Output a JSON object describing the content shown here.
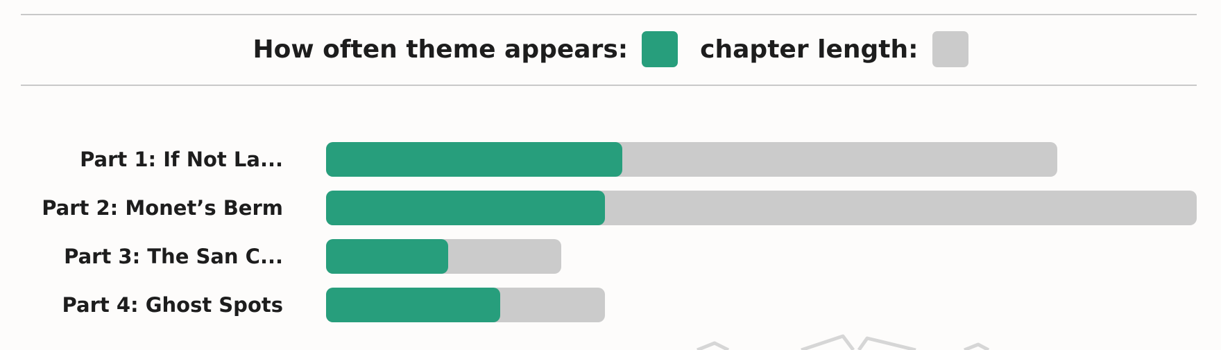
{
  "legend": {
    "theme_label": "How often theme appears:",
    "length_label": "chapter length:",
    "theme_color": "#279e7c",
    "length_color": "#cbcbcb"
  },
  "chart_data": {
    "type": "bar",
    "orientation": "horizontal",
    "stacked_overlay": true,
    "categories": [
      "Part 1: If Not La...",
      "Part 2: Monet’s Berm",
      "Part 3: The San C...",
      "Part 4: Ghost Spots"
    ],
    "series": [
      {
        "name": "How often theme appears",
        "values": [
          0.34,
          0.32,
          0.14,
          0.2
        ],
        "color": "#279e7c"
      },
      {
        "name": "chapter length",
        "values": [
          0.84,
          1.0,
          0.27,
          0.32
        ],
        "color": "#cbcbcb"
      }
    ],
    "xlim": [
      0,
      1
    ],
    "grid": false,
    "legend_position": "top-center"
  }
}
